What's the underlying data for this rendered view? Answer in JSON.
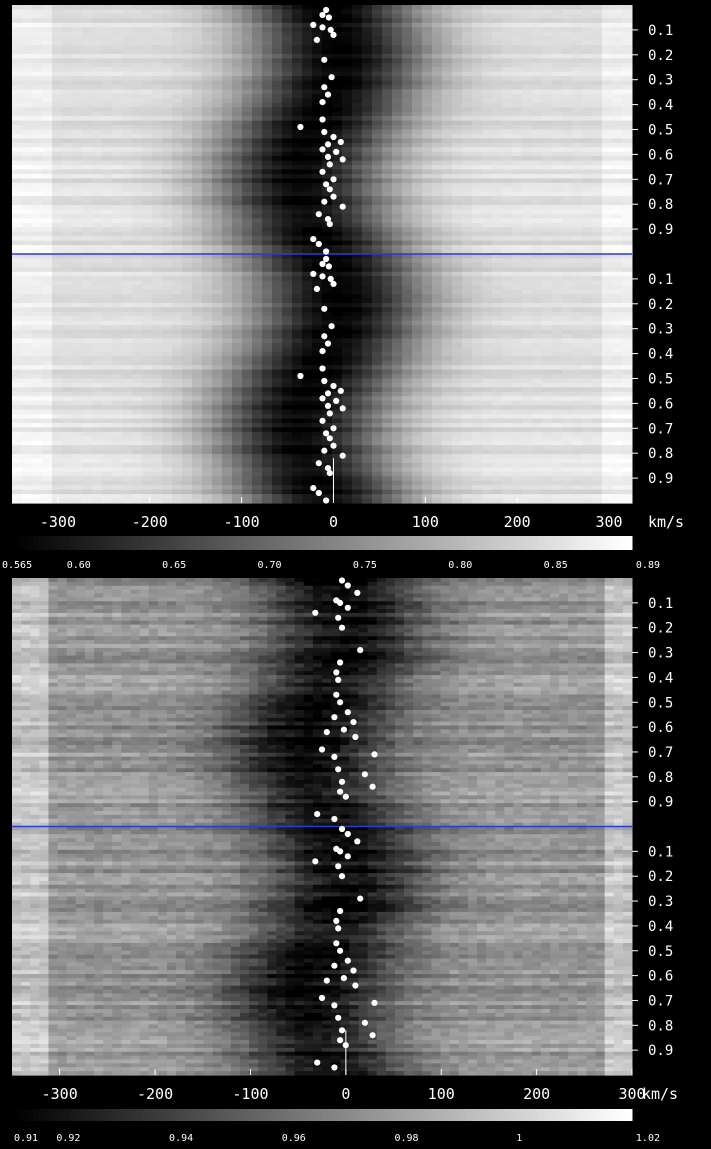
{
  "chart_data": [
    {
      "type": "heatmap",
      "title": "",
      "xlabel": "km/s",
      "ylabel": "",
      "xlim": [
        -350,
        325
      ],
      "x_ticks": [
        -300,
        -200,
        -100,
        0,
        100,
        200,
        300
      ],
      "x_tick_labels": [
        "-300",
        "-200",
        "-100",
        "0",
        "100",
        "200",
        "300"
      ],
      "y_tick_labels": [
        "0.1",
        "0.2",
        "0.3",
        "0.4",
        "0.5",
        "0.6",
        "0.7",
        "0.8",
        "0.9"
      ],
      "phase_cycles": 2,
      "grid": false,
      "colormap": "gray",
      "colorbar_range": [
        0.565,
        0.89
      ],
      "colorbar_ticks": [
        0.565,
        0.6,
        0.65,
        0.7,
        0.75,
        0.8,
        0.85,
        0.89
      ],
      "colorbar_tick_labels": [
        "0.565",
        "0.60",
        "0.65",
        "0.70",
        "0.75",
        "0.80",
        "0.85",
        "0.89"
      ],
      "line_profile": {
        "center_kms": -15,
        "width_kms": 95,
        "min_value": 0.57,
        "continuum": 0.85
      },
      "separator_color": "#2a3bd6",
      "point_color": "#ffffff",
      "points": [
        {
          "v": -8,
          "p": 0.02
        },
        {
          "v": -12,
          "p": 0.04
        },
        {
          "v": -5,
          "p": 0.05
        },
        {
          "v": -22,
          "p": 0.08
        },
        {
          "v": -12,
          "p": 0.09
        },
        {
          "v": -3,
          "p": 0.1
        },
        {
          "v": 0,
          "p": 0.12
        },
        {
          "v": -18,
          "p": 0.14
        },
        {
          "v": -10,
          "p": 0.22
        },
        {
          "v": -2,
          "p": 0.29
        },
        {
          "v": -10,
          "p": 0.33
        },
        {
          "v": -6,
          "p": 0.36
        },
        {
          "v": -12,
          "p": 0.39
        },
        {
          "v": -36,
          "p": 0.49
        },
        {
          "v": -12,
          "p": 0.46
        },
        {
          "v": -10,
          "p": 0.51
        },
        {
          "v": 0,
          "p": 0.53
        },
        {
          "v": 8,
          "p": 0.55
        },
        {
          "v": -6,
          "p": 0.56
        },
        {
          "v": -12,
          "p": 0.58
        },
        {
          "v": 3,
          "p": 0.59
        },
        {
          "v": -6,
          "p": 0.61
        },
        {
          "v": 10,
          "p": 0.62
        },
        {
          "v": -4,
          "p": 0.64
        },
        {
          "v": -12,
          "p": 0.67
        },
        {
          "v": 0,
          "p": 0.7
        },
        {
          "v": -8,
          "p": 0.72
        },
        {
          "v": -4,
          "p": 0.74
        },
        {
          "v": 0,
          "p": 0.77
        },
        {
          "v": -10,
          "p": 0.79
        },
        {
          "v": 10,
          "p": 0.81
        },
        {
          "v": -16,
          "p": 0.84
        },
        {
          "v": -6,
          "p": 0.86
        },
        {
          "v": -4,
          "p": 0.88
        },
        {
          "v": -22,
          "p": 0.94
        },
        {
          "v": -16,
          "p": 0.96
        },
        {
          "v": -8,
          "p": 0.99
        }
      ]
    },
    {
      "type": "heatmap",
      "title": "",
      "xlabel": "km/s",
      "ylabel": "",
      "xlim": [
        -350,
        300
      ],
      "x_ticks": [
        -300,
        -200,
        -100,
        0,
        100,
        200,
        300
      ],
      "x_tick_labels": [
        "-300",
        "-200",
        "-100",
        "0",
        "100",
        "200",
        "300"
      ],
      "y_tick_labels": [
        "0.1",
        "0.2",
        "0.3",
        "0.4",
        "0.5",
        "0.6",
        "0.7",
        "0.8",
        "0.9"
      ],
      "phase_cycles": 2,
      "grid": false,
      "colormap": "gray",
      "colorbar_range": [
        0.91,
        1.02
      ],
      "colorbar_ticks": [
        0.91,
        0.92,
        0.94,
        0.96,
        0.98,
        1.0,
        1.02
      ],
      "colorbar_tick_labels": [
        "0.91",
        "0.92",
        "0.94",
        "0.96",
        "0.98",
        "1",
        "1.02"
      ],
      "line_profile": {
        "center_kms": -20,
        "width_kms": 85,
        "min_value": 0.915,
        "continuum": 0.975
      },
      "separator_color": "#2a3bd6",
      "point_color": "#ffffff",
      "points": [
        {
          "v": -4,
          "p": 0.01
        },
        {
          "v": 2,
          "p": 0.03
        },
        {
          "v": 12,
          "p": 0.06
        },
        {
          "v": -10,
          "p": 0.09
        },
        {
          "v": -6,
          "p": 0.1
        },
        {
          "v": 2,
          "p": 0.12
        },
        {
          "v": -32,
          "p": 0.14
        },
        {
          "v": -8,
          "p": 0.16
        },
        {
          "v": -4,
          "p": 0.2
        },
        {
          "v": 15,
          "p": 0.29
        },
        {
          "v": -6,
          "p": 0.34
        },
        {
          "v": -10,
          "p": 0.38
        },
        {
          "v": -8,
          "p": 0.41
        },
        {
          "v": -10,
          "p": 0.47
        },
        {
          "v": -6,
          "p": 0.5
        },
        {
          "v": 2,
          "p": 0.54
        },
        {
          "v": -12,
          "p": 0.56
        },
        {
          "v": 8,
          "p": 0.58
        },
        {
          "v": -2,
          "p": 0.61
        },
        {
          "v": -20,
          "p": 0.62
        },
        {
          "v": 10,
          "p": 0.64
        },
        {
          "v": -25,
          "p": 0.69
        },
        {
          "v": 30,
          "p": 0.71
        },
        {
          "v": -12,
          "p": 0.72
        },
        {
          "v": -8,
          "p": 0.77
        },
        {
          "v": 20,
          "p": 0.79
        },
        {
          "v": -4,
          "p": 0.82
        },
        {
          "v": 28,
          "p": 0.84
        },
        {
          "v": -6,
          "p": 0.86
        },
        {
          "v": 0,
          "p": 0.88
        },
        {
          "v": -30,
          "p": 0.95
        },
        {
          "v": -12,
          "p": 0.97
        }
      ]
    }
  ]
}
